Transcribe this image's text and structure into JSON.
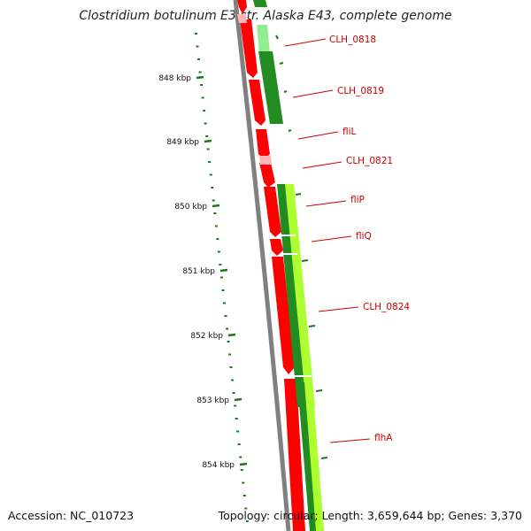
{
  "title": "Clostridium botulinum E3 str. Alaska E43, complete genome",
  "footer": {
    "accession": "Accession: NC_010723",
    "topology": "Topology: circular; Length: 3,659,644 bp; Genes: 3,370"
  },
  "colors": {
    "backbone": "#808080",
    "forward_gene": "#ff0000",
    "reverse_gene": "#228b22",
    "light_gene": "#adff2f",
    "tick": "#1a7a1a",
    "label": "#cc0000"
  },
  "scale_ticks": [
    {
      "label": "848 kbp"
    },
    {
      "label": "849 kbp"
    },
    {
      "label": "850 kbp"
    },
    {
      "label": "851 kbp"
    },
    {
      "label": "852 kbp"
    },
    {
      "label": "853 kbp"
    },
    {
      "label": "854 kbp"
    }
  ],
  "genes": [
    {
      "label": "CLH_0818",
      "strand": "reverse",
      "color": "dark-green"
    },
    {
      "label": "CLH_0819",
      "strand": "reverse",
      "color": "dark-green"
    },
    {
      "label": "fliL",
      "strand": "forward",
      "color": "red"
    },
    {
      "label": "CLH_0821",
      "strand": "forward",
      "color": "red"
    },
    {
      "label": "fliP",
      "strand": "forward",
      "color": "red"
    },
    {
      "label": "fliQ",
      "strand": "forward",
      "color": "red"
    },
    {
      "label": "CLH_0824",
      "strand": "forward",
      "color": "red"
    },
    {
      "label": "flhA",
      "strand": "forward",
      "color": "red"
    }
  ]
}
